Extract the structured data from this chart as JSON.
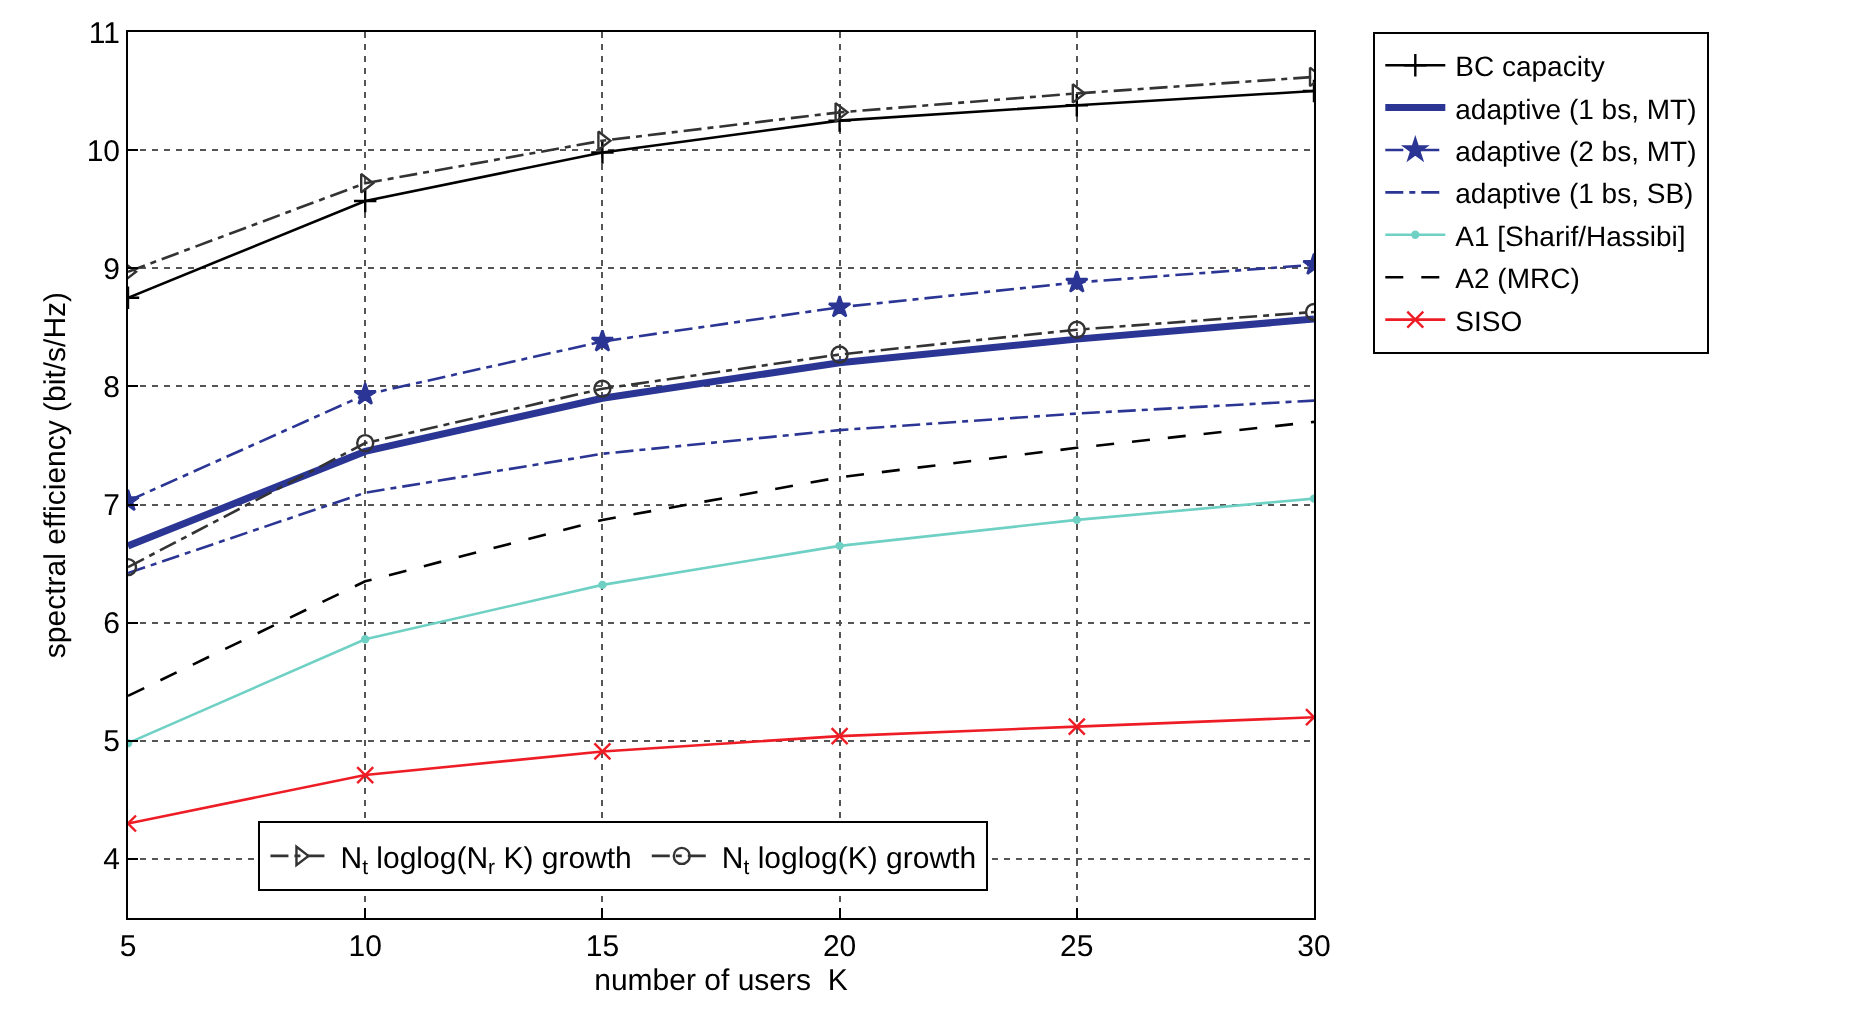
{
  "chart_data": {
    "type": "line",
    "xlabel": "number of users  K",
    "ylabel": "spectral efficiency (bit/s/Hz)",
    "x": [
      5,
      10,
      15,
      20,
      25,
      30
    ],
    "xlim": [
      5,
      30
    ],
    "xticks": [
      5,
      10,
      15,
      20,
      25,
      30
    ],
    "ylim": [
      3.5,
      11
    ],
    "yticks": [
      4,
      5,
      6,
      7,
      8,
      9,
      10,
      11
    ],
    "grid": true,
    "legend": "top right",
    "series": [
      {
        "name": "BC capacity",
        "color": "#000000",
        "marker": "cross",
        "line_style": "solid",
        "values": [
          8.75,
          9.57,
          9.98,
          10.25,
          10.38,
          10.5
        ]
      },
      {
        "name": "adaptive (1 bs, MT)",
        "color": "#2b3594",
        "marker": "none",
        "line_style": "solid",
        "values": [
          6.65,
          7.45,
          7.9,
          8.2,
          8.4,
          8.57
        ]
      },
      {
        "name": "adaptive (2 bs, MT)",
        "color": "#2b3594",
        "marker": "star",
        "line_style": "dashdot",
        "values": [
          7.03,
          7.93,
          8.38,
          8.67,
          8.88,
          9.03
        ]
      },
      {
        "name": "adaptive (1 bs, SB)",
        "color": "#2b3594",
        "marker": "none",
        "line_style": "dashdot",
        "values": [
          6.42,
          7.1,
          7.43,
          7.63,
          7.77,
          7.88
        ]
      },
      {
        "name": "A1 [Sharif/Hassibi]",
        "color": "#6fd0c4",
        "marker": "dot",
        "line_style": "solid",
        "values": [
          4.98,
          5.86,
          6.32,
          6.65,
          6.87,
          7.05
        ]
      },
      {
        "name": "A2 (MRC)",
        "color": "#000000",
        "marker": "none",
        "line_style": "dashed",
        "values": [
          5.38,
          6.35,
          6.87,
          7.23,
          7.48,
          7.7
        ]
      },
      {
        "name": "SISO",
        "color": "#ee1c25",
        "marker": "x",
        "line_style": "solid",
        "values": [
          4.3,
          4.71,
          4.91,
          5.04,
          5.12,
          5.2
        ]
      },
      {
        "name": "N$_{t}$ loglog(N$_{r}$ K) growth",
        "color": "#333333",
        "marker": "triangle",
        "line_style": "dashdot",
        "values": [
          8.97,
          9.72,
          10.08,
          10.32,
          10.48,
          10.62
        ]
      },
      {
        "name": "N$_{t}$ loglog(K) growth",
        "color": "#333333",
        "marker": "circle",
        "line_style": "dashdot",
        "values": [
          6.47,
          7.52,
          7.98,
          8.27,
          8.48,
          8.63
        ]
      }
    ]
  }
}
